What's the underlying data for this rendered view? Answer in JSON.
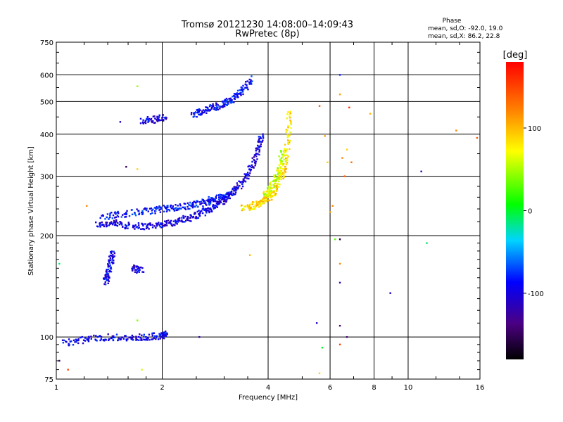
{
  "chart_data": {
    "type": "scatter",
    "title": "Tromsø 20121230 14:08:00–14:09:43",
    "subtitle": "RwPretec (8p)",
    "xlabel": "Frequency [MHz]",
    "ylabel": "Stationary phase Virtual Height [km]",
    "x_scale": "log",
    "y_scale": "log",
    "xlim": [
      1,
      16
    ],
    "ylim": [
      75,
      750
    ],
    "x_ticks": [
      1,
      2,
      4,
      6,
      8,
      10,
      16
    ],
    "y_ticks": [
      75,
      100,
      200,
      300,
      400,
      500,
      600,
      750
    ],
    "grid": true,
    "phase_note": {
      "title": "Phase",
      "line1": "mean, sd,O: -92.0, 19.0",
      "line2": "mean, sd,X: 86.2, 22.8"
    },
    "colorbar": {
      "label": "[deg]",
      "range": [
        -180,
        180
      ],
      "ticks": [
        100,
        0,
        -100
      ],
      "tick_labels": [
        "100",
        "0",
        "-100"
      ]
    },
    "traces": [
      {
        "x": [
          1.3,
          1.45,
          1.6,
          1.8,
          2.0,
          2.2,
          2.4,
          2.6,
          2.8,
          3.0,
          3.2,
          3.4,
          3.6,
          3.75,
          3.85
        ],
        "y": [
          215,
          218,
          214,
          213,
          216,
          220,
          226,
          234,
          244,
          255,
          270,
          290,
          320,
          360,
          400
        ],
        "phase": -100
      },
      {
        "x": [
          1.35,
          1.55,
          1.8,
          2.0,
          2.2,
          2.4,
          2.6,
          2.8,
          3.0,
          3.2
        ],
        "y": [
          228,
          232,
          236,
          240,
          242,
          246,
          250,
          256,
          262,
          272
        ],
        "phase": -85
      },
      {
        "x": [
          3.4,
          3.6,
          3.8,
          4.0,
          4.15,
          4.3,
          4.45,
          4.55,
          4.6
        ],
        "y": [
          242,
          244,
          250,
          258,
          270,
          290,
          320,
          380,
          470
        ],
        "phase": 85
      },
      {
        "x": [
          3.9,
          4.1,
          4.3,
          4.4
        ],
        "y": [
          262,
          280,
          310,
          360
        ],
        "phase": 60
      },
      {
        "x": [
          2.45,
          2.6,
          2.8,
          3.0,
          3.2,
          3.4,
          3.6
        ],
        "y": [
          458,
          468,
          480,
          492,
          510,
          540,
          585
        ],
        "phase": -90
      },
      {
        "x": [
          1.75,
          1.9,
          2.05
        ],
        "y": [
          438,
          442,
          448
        ],
        "phase": -100
      },
      {
        "x": [
          1.05,
          1.2,
          1.4,
          1.6,
          1.8,
          2.0,
          2.05
        ],
        "y": [
          96,
          98,
          100,
          99,
          100,
          101,
          103
        ],
        "phase": -95
      },
      {
        "x": [
          1.38,
          1.4,
          1.43,
          1.45
        ],
        "y": [
          145,
          155,
          165,
          180
        ],
        "phase": -95
      },
      {
        "x": [
          1.65,
          1.75
        ],
        "y": [
          160,
          158
        ],
        "phase": -100
      }
    ],
    "scattered_points": [
      {
        "x": 1.7,
        "y": 555,
        "phase": 45
      },
      {
        "x": 1.7,
        "y": 315,
        "phase": 90
      },
      {
        "x": 1.58,
        "y": 320,
        "phase": -150
      },
      {
        "x": 1.22,
        "y": 245,
        "phase": 120
      },
      {
        "x": 1.52,
        "y": 435,
        "phase": -110
      },
      {
        "x": 1.02,
        "y": 165,
        "phase": -10
      },
      {
        "x": 1.02,
        "y": 85,
        "phase": -150
      },
      {
        "x": 1.08,
        "y": 80,
        "phase": 150
      },
      {
        "x": 1.75,
        "y": 80,
        "phase": 60
      },
      {
        "x": 1.7,
        "y": 112,
        "phase": 40
      },
      {
        "x": 2.55,
        "y": 100,
        "phase": -120
      },
      {
        "x": 3.55,
        "y": 175,
        "phase": 100
      },
      {
        "x": 5.8,
        "y": 395,
        "phase": 110
      },
      {
        "x": 5.6,
        "y": 485,
        "phase": 140
      },
      {
        "x": 5.9,
        "y": 330,
        "phase": 90
      },
      {
        "x": 6.1,
        "y": 245,
        "phase": 120
      },
      {
        "x": 6.0,
        "y": 235,
        "phase": 110
      },
      {
        "x": 6.2,
        "y": 195,
        "phase": 30
      },
      {
        "x": 6.4,
        "y": 195,
        "phase": -160
      },
      {
        "x": 6.4,
        "y": 165,
        "phase": 120
      },
      {
        "x": 6.4,
        "y": 145,
        "phase": -120
      },
      {
        "x": 6.4,
        "y": 108,
        "phase": -140
      },
      {
        "x": 6.4,
        "y": 95,
        "phase": 150
      },
      {
        "x": 6.4,
        "y": 600,
        "phase": -80
      },
      {
        "x": 6.4,
        "y": 525,
        "phase": 110
      },
      {
        "x": 6.5,
        "y": 340,
        "phase": 120
      },
      {
        "x": 6.6,
        "y": 300,
        "phase": 140
      },
      {
        "x": 6.7,
        "y": 360,
        "phase": 90
      },
      {
        "x": 6.8,
        "y": 480,
        "phase": 160
      },
      {
        "x": 6.9,
        "y": 330,
        "phase": 130
      },
      {
        "x": 7.8,
        "y": 460,
        "phase": 100
      },
      {
        "x": 5.5,
        "y": 110,
        "phase": -110
      },
      {
        "x": 5.7,
        "y": 93,
        "phase": 0
      },
      {
        "x": 5.6,
        "y": 78,
        "phase": 90
      },
      {
        "x": 6.7,
        "y": 100,
        "phase": -140
      },
      {
        "x": 8.9,
        "y": 135,
        "phase": -110
      },
      {
        "x": 10.9,
        "y": 310,
        "phase": -120
      },
      {
        "x": 11.3,
        "y": 190,
        "phase": -10
      },
      {
        "x": 13.7,
        "y": 410,
        "phase": 120
      },
      {
        "x": 15.7,
        "y": 390,
        "phase": 140
      }
    ]
  }
}
